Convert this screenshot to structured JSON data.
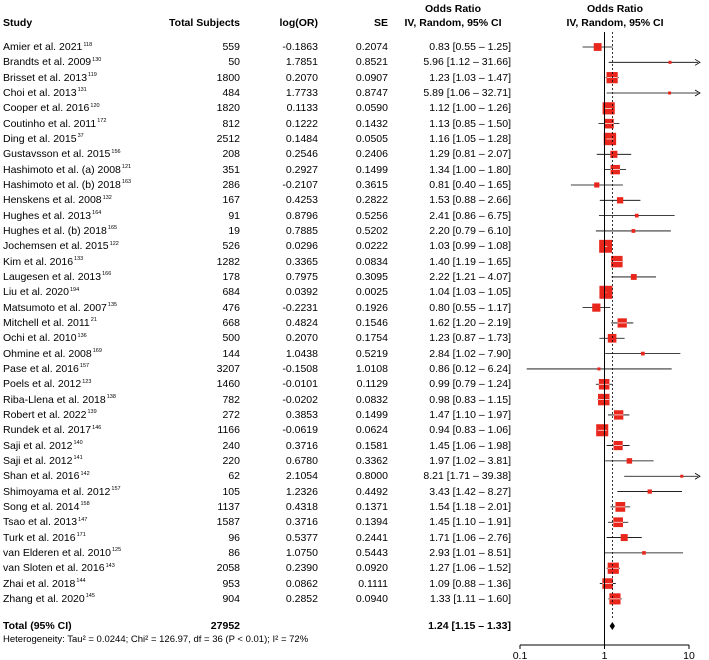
{
  "headers": {
    "study": "Study",
    "total": "Total Subjects",
    "logor": "log(OR)",
    "se": "SE",
    "or_line1": "Odds Ratio",
    "or_line2": "IV, Random, 95% CI",
    "plot_line1": "Odds Ratio",
    "plot_line2": "IV, Random, 95% CI"
  },
  "total": {
    "label": "Total (95% CI)",
    "subjects": "27952",
    "ci": "1.24 [1.15 – 1.33]"
  },
  "heterogeneity": "Heterogeneity: Tau² = 0.0244; Chi² = 126.97, df = 36 (P < 0.01); I² = 72%",
  "colors": {
    "box": "#e8261c",
    "summary": "#000000",
    "axis": "#000000"
  },
  "chart_data": {
    "type": "forest",
    "axis_scale": "log",
    "xlim": [
      0.1,
      10
    ],
    "xticks": [
      "0.1",
      "1",
      "10"
    ],
    "null_line": 1,
    "pooled": {
      "or": 1.24,
      "lower": 1.15,
      "upper": 1.33
    },
    "studies": [
      {
        "name": "Amier et al. 2021",
        "ref": "118",
        "n": "559",
        "logor": "-0.1863",
        "se": "0.2074",
        "ci": "0.83 [0.55 – 1.25]",
        "or": 0.83,
        "lo": 0.55,
        "hi": 1.25
      },
      {
        "name": "Brandts et al. 2009",
        "ref": "130",
        "n": "50",
        "logor": "1.7851",
        "se": "0.8521",
        "ci": "5.96 [1.12 – 31.66]",
        "or": 5.96,
        "lo": 1.12,
        "hi": 31.66
      },
      {
        "name": "Brisset et al. 2013",
        "ref": "119",
        "n": "1800",
        "logor": "0.2070",
        "se": "0.0907",
        "ci": "1.23 [1.03 – 1.47]",
        "or": 1.23,
        "lo": 1.03,
        "hi": 1.47
      },
      {
        "name": "Choi et al. 2013",
        "ref": "131",
        "n": "484",
        "logor": "1.7733",
        "se": "0.8747",
        "ci": "5.89 [1.06 – 32.71]",
        "or": 5.89,
        "lo": 1.06,
        "hi": 32.71
      },
      {
        "name": "Cooper et al. 2016",
        "ref": "120",
        "n": "1820",
        "logor": "0.1133",
        "se": "0.0590",
        "ci": "1.12 [1.00 – 1.26]",
        "or": 1.12,
        "lo": 1.0,
        "hi": 1.26
      },
      {
        "name": "Coutinho et al. 2011",
        "ref": "172",
        "n": "812",
        "logor": "0.1222",
        "se": "0.1432",
        "ci": "1.13 [0.85 – 1.50]",
        "or": 1.13,
        "lo": 0.85,
        "hi": 1.5
      },
      {
        "name": "Ding et al. 2015",
        "ref": "37",
        "n": "2512",
        "logor": "0.1484",
        "se": "0.0505",
        "ci": "1.16 [1.05 – 1.28]",
        "or": 1.16,
        "lo": 1.05,
        "hi": 1.28
      },
      {
        "name": "Gustavsson et al. 2015",
        "ref": "156",
        "n": "208",
        "logor": "0.2546",
        "se": "0.2406",
        "ci": "1.29 [0.81 – 2.07]",
        "or": 1.29,
        "lo": 0.81,
        "hi": 2.07
      },
      {
        "name": "Hashimoto et al. (a) 2008",
        "ref": "121",
        "n": "351",
        "logor": "0.2927",
        "se": "0.1499",
        "ci": "1.34 [1.00 – 1.80]",
        "or": 1.34,
        "lo": 1.0,
        "hi": 1.8
      },
      {
        "name": "Hashimoto et al. (b) 2018",
        "ref": "163",
        "n": "286",
        "logor": "-0.2107",
        "se": "0.3615",
        "ci": "0.81 [0.40 – 1.65]",
        "or": 0.81,
        "lo": 0.4,
        "hi": 1.65
      },
      {
        "name": "Henskens et al. 2008",
        "ref": "132",
        "n": "167",
        "logor": "0.4253",
        "se": "0.2822",
        "ci": "1.53 [0.88 – 2.66]",
        "or": 1.53,
        "lo": 0.88,
        "hi": 2.66
      },
      {
        "name": "Hughes et al. 2013",
        "ref": "164",
        "n": "91",
        "logor": "0.8796",
        "se": "0.5256",
        "ci": "2.41 [0.86 – 6.75]",
        "or": 2.41,
        "lo": 0.86,
        "hi": 6.75
      },
      {
        "name": "Hughes et al. (b) 2018",
        "ref": "165",
        "n": "19",
        "logor": "0.7885",
        "se": "0.5202",
        "ci": "2.20 [0.79 – 6.10]",
        "or": 2.2,
        "lo": 0.79,
        "hi": 6.1
      },
      {
        "name": "Jochemsen et al. 2015",
        "ref": "122",
        "n": "526",
        "logor": "0.0296",
        "se": "0.0222",
        "ci": "1.03 [0.99 – 1.08]",
        "or": 1.03,
        "lo": 0.99,
        "hi": 1.08
      },
      {
        "name": "Kim et al. 2016",
        "ref": "133",
        "n": "1282",
        "logor": "0.3365",
        "se": "0.0834",
        "ci": "1.40 [1.19 – 1.65]",
        "or": 1.4,
        "lo": 1.19,
        "hi": 1.65
      },
      {
        "name": "Laugesen et al. 2013",
        "ref": "166",
        "n": "178",
        "logor": "0.7975",
        "se": "0.3095",
        "ci": "2.22 [1.21 – 4.07]",
        "or": 2.22,
        "lo": 1.21,
        "hi": 4.07
      },
      {
        "name": "Liu et al. 2020",
        "ref": "194",
        "n": "684",
        "logor": "0.0392",
        "se": "0.0025",
        "ci": "1.04 [1.03 – 1.05]",
        "or": 1.04,
        "lo": 1.03,
        "hi": 1.05
      },
      {
        "name": "Matsumoto et al. 2007",
        "ref": "135",
        "n": "476",
        "logor": "-0.2231",
        "se": "0.1926",
        "ci": "0.80 [0.55 – 1.17]",
        "or": 0.8,
        "lo": 0.55,
        "hi": 1.17
      },
      {
        "name": "Mitchell et al. 2011",
        "ref": "21",
        "n": "668",
        "logor": "0.4824",
        "se": "0.1546",
        "ci": "1.62 [1.20 – 2.19]",
        "or": 1.62,
        "lo": 1.2,
        "hi": 2.19
      },
      {
        "name": "Ochi et al. 2010",
        "ref": "136",
        "n": "500",
        "logor": "0.2070",
        "se": "0.1754",
        "ci": "1.23 [0.87 – 1.73]",
        "or": 1.23,
        "lo": 0.87,
        "hi": 1.73
      },
      {
        "name": "Ohmine et al. 2008",
        "ref": "169",
        "n": "144",
        "logor": "1.0438",
        "se": "0.5219",
        "ci": "2.84 [1.02 – 7.90]",
        "or": 2.84,
        "lo": 1.02,
        "hi": 7.9
      },
      {
        "name": "Pase et al. 2016",
        "ref": "157",
        "n": "3207",
        "logor": "-0.1508",
        "se": "1.0108",
        "ci": "0.86 [0.12 – 6.24]",
        "or": 0.86,
        "lo": 0.12,
        "hi": 6.24
      },
      {
        "name": "Poels et al. 2012",
        "ref": "123",
        "n": "1460",
        "logor": "-0.0101",
        "se": "0.1129",
        "ci": "0.99 [0.79 – 1.24]",
        "or": 0.99,
        "lo": 0.79,
        "hi": 1.24
      },
      {
        "name": "Riba-Llena et al. 2018",
        "ref": "138",
        "n": "782",
        "logor": "-0.0202",
        "se": "0.0832",
        "ci": "0.98 [0.83 – 1.15]",
        "or": 0.98,
        "lo": 0.83,
        "hi": 1.15
      },
      {
        "name": "Robert et al. 2022",
        "ref": "139",
        "n": "272",
        "logor": "0.3853",
        "se": "0.1499",
        "ci": "1.47 [1.10 – 1.97]",
        "or": 1.47,
        "lo": 1.1,
        "hi": 1.97
      },
      {
        "name": "Rundek et al. 2017",
        "ref": "146",
        "n": "1166",
        "logor": "-0.0619",
        "se": "0.0624",
        "ci": "0.94 [0.83 – 1.06]",
        "or": 0.94,
        "lo": 0.83,
        "hi": 1.06
      },
      {
        "name": "Saji et al. 2012",
        "ref": "140",
        "n": "240",
        "logor": "0.3716",
        "se": "0.1581",
        "ci": "1.45 [1.06 – 1.98]",
        "or": 1.45,
        "lo": 1.06,
        "hi": 1.98
      },
      {
        "name": "Saji et al. 2012",
        "ref": "141",
        "n": "220",
        "logor": "0.6780",
        "se": "0.3362",
        "ci": "1.97 [1.02 – 3.81]",
        "or": 1.97,
        "lo": 1.02,
        "hi": 3.81
      },
      {
        "name": "Shan et al. 2016",
        "ref": "142",
        "n": "62",
        "logor": "2.1054",
        "se": "0.8000",
        "ci": "8.21 [1.71 – 39.38]",
        "or": 8.21,
        "lo": 1.71,
        "hi": 39.38
      },
      {
        "name": "Shimoyama et al. 2012",
        "ref": "157",
        "n": "105",
        "logor": "1.2326",
        "se": "0.4492",
        "ci": "3.43 [1.42 – 8.27]",
        "or": 3.43,
        "lo": 1.42,
        "hi": 8.27
      },
      {
        "name": "Song et al. 2014",
        "ref": "158",
        "n": "1137",
        "logor": "0.4318",
        "se": "0.1371",
        "ci": "1.54 [1.18 – 2.01]",
        "or": 1.54,
        "lo": 1.18,
        "hi": 2.01
      },
      {
        "name": "Tsao et al. 2013",
        "ref": "147",
        "n": "1587",
        "logor": "0.3716",
        "se": "0.1394",
        "ci": "1.45 [1.10 – 1.91]",
        "or": 1.45,
        "lo": 1.1,
        "hi": 1.91
      },
      {
        "name": "Turk et al. 2016",
        "ref": "171",
        "n": "96",
        "logor": "0.5377",
        "se": "0.2441",
        "ci": "1.71 [1.06 – 2.76]",
        "or": 1.71,
        "lo": 1.06,
        "hi": 2.76
      },
      {
        "name": "van Elderen et al. 2010",
        "ref": "125",
        "n": "86",
        "logor": "1.0750",
        "se": "0.5443",
        "ci": "2.93 [1.01 – 8.51]",
        "or": 2.93,
        "lo": 1.01,
        "hi": 8.51
      },
      {
        "name": "van Sloten et al. 2016",
        "ref": "143",
        "n": "2058",
        "logor": "0.2390",
        "se": "0.0920",
        "ci": "1.27 [1.06 – 1.52]",
        "or": 1.27,
        "lo": 1.06,
        "hi": 1.52
      },
      {
        "name": "Zhai et al. 2018",
        "ref": "144",
        "n": "953",
        "logor": "0.0862",
        "se": "0.1111",
        "ci": "1.09 [0.88 – 1.36]",
        "or": 1.09,
        "lo": 0.88,
        "hi": 1.36
      },
      {
        "name": "Zhang et al. 2020",
        "ref": "145",
        "n": "904",
        "logor": "0.2852",
        "se": "0.0940",
        "ci": "1.33 [1.11 – 1.60]",
        "or": 1.33,
        "lo": 1.11,
        "hi": 1.6
      }
    ]
  }
}
